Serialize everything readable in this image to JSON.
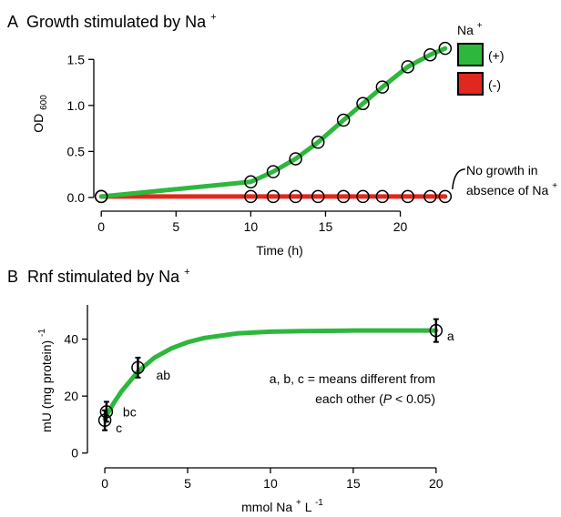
{
  "chart_data": [
    {
      "type": "line",
      "panel_letter": "A",
      "title_text": "Growth stimulated by Na",
      "title_sup": "+",
      "xlabel": "Time (h)",
      "ylabel_main": "OD",
      "ylabel_sub": "600",
      "xlim": [
        -0.5,
        23.5
      ],
      "ylim": [
        -0.05,
        1.75
      ],
      "x_ticks": [
        0,
        5,
        10,
        15,
        20
      ],
      "y_ticks": [
        0.0,
        0.5,
        1.0,
        1.5
      ],
      "y_tick_labels": [
        "0.0",
        "0.5",
        "1.0",
        "1.5"
      ],
      "legend": {
        "title_text": "Na",
        "title_sup": "+",
        "placement": "top-right",
        "entries": [
          {
            "label": "(+)",
            "color": "#2db83d"
          },
          {
            "label": "(-)",
            "color": "#e0281e"
          }
        ]
      },
      "series": [
        {
          "legend_label": "(+)",
          "color": "#2db83d",
          "points": [
            {
              "x": 0,
              "y": 0.01
            },
            {
              "x": 10,
              "y": 0.17
            },
            {
              "x": 11.5,
              "y": 0.28
            },
            {
              "x": 13,
              "y": 0.42
            },
            {
              "x": 14.5,
              "y": 0.6
            },
            {
              "x": 16.2,
              "y": 0.84
            },
            {
              "x": 17.5,
              "y": 1.02
            },
            {
              "x": 18.8,
              "y": 1.2
            },
            {
              "x": 20.5,
              "y": 1.42
            },
            {
              "x": 22,
              "y": 1.55
            },
            {
              "x": 23,
              "y": 1.62
            }
          ]
        },
        {
          "legend_label": "(-)",
          "color": "#e0281e",
          "points": [
            {
              "x": 0,
              "y": 0.01
            },
            {
              "x": 10,
              "y": 0.01
            },
            {
              "x": 11.5,
              "y": 0.01
            },
            {
              "x": 13,
              "y": 0.01
            },
            {
              "x": 14.5,
              "y": 0.01
            },
            {
              "x": 16.2,
              "y": 0.01
            },
            {
              "x": 17.5,
              "y": 0.01
            },
            {
              "x": 18.8,
              "y": 0.01
            },
            {
              "x": 20.5,
              "y": 0.01
            },
            {
              "x": 22,
              "y": 0.01
            },
            {
              "x": 23,
              "y": 0.01
            }
          ]
        }
      ],
      "annotation": {
        "lines": [
          "No growth in",
          "absence of Na"
        ],
        "sup": "+",
        "x": 23,
        "y": 0.01
      }
    },
    {
      "type": "scatter",
      "panel_letter": "B",
      "title_text": "Rnf stimulated by Na",
      "title_sup": "+",
      "xlabel_main": "mmol Na",
      "xlabel_sup1": "+",
      "xlabel_unit": " L",
      "xlabel_sup2": "-1",
      "ylabel_main": "mU (mg protein)",
      "ylabel_sup": "-1",
      "xlim": [
        -0.5,
        21
      ],
      "ylim": [
        -2,
        52
      ],
      "x_ticks": [
        0,
        5,
        10,
        15,
        20
      ],
      "y_ticks": [
        0,
        20,
        40
      ],
      "points": [
        {
          "x": 0,
          "y": 11.5,
          "err": 3.5,
          "label": "c"
        },
        {
          "x": 0.1,
          "y": 14.5,
          "err": 3.5,
          "label": "bc"
        },
        {
          "x": 2,
          "y": 30,
          "err": 3.5,
          "label": "ab"
        },
        {
          "x": 20,
          "y": 43,
          "err": 4,
          "label": "a"
        }
      ],
      "fit_color": "#2db83d",
      "fit_curve": [
        {
          "x": 0,
          "y": 12
        },
        {
          "x": 0.5,
          "y": 17.2
        },
        {
          "x": 1,
          "y": 21.6
        },
        {
          "x": 2,
          "y": 28.6
        },
        {
          "x": 3,
          "y": 33.5
        },
        {
          "x": 4,
          "y": 36.7
        },
        {
          "x": 5,
          "y": 38.9
        },
        {
          "x": 6,
          "y": 40.4
        },
        {
          "x": 8,
          "y": 42.0
        },
        {
          "x": 10,
          "y": 42.6
        },
        {
          "x": 12,
          "y": 42.8
        },
        {
          "x": 15,
          "y": 43.0
        },
        {
          "x": 20,
          "y": 43.0
        }
      ],
      "note_line1": "a, b, c = means different from",
      "note_line2_pre": "each other (",
      "note_line2_italic": "P",
      "note_line2_post": " < 0.05)"
    }
  ]
}
